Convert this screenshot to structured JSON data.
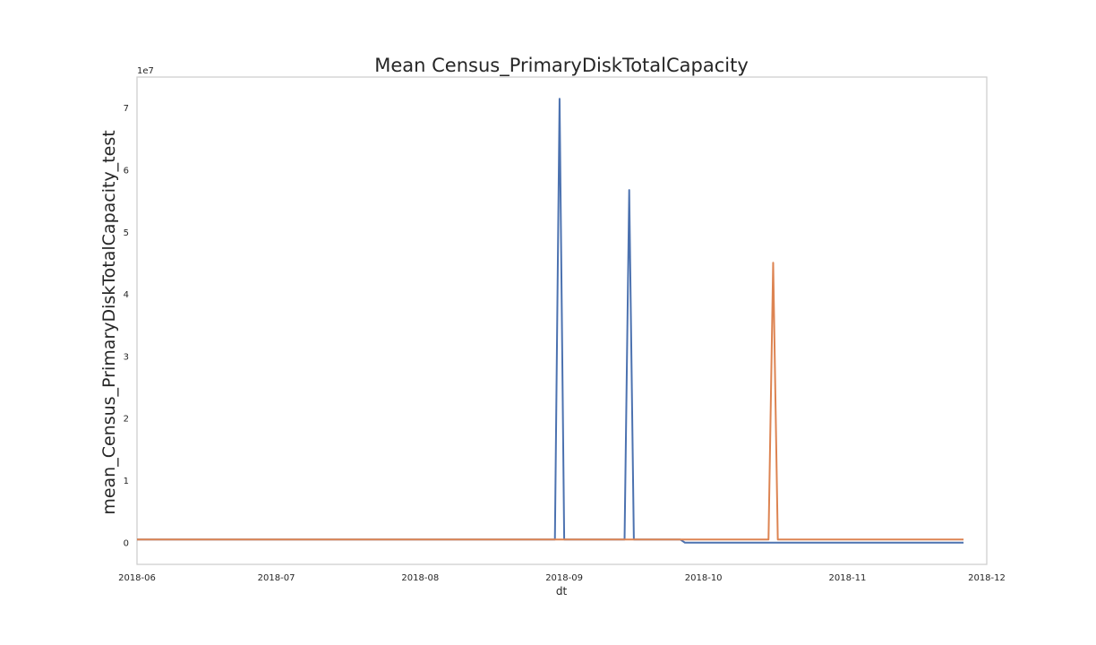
{
  "chart_data": {
    "type": "line",
    "title": "Mean Census_PrimaryDiskTotalCapacity",
    "xlabel": "dt",
    "ylabel": "mean_Census_PrimaryDiskTotalCapacity_test",
    "y_offset_label": "1e7",
    "y_scale_multiplier": 10000000,
    "xlim": [
      "2018-06-01",
      "2018-12-01"
    ],
    "ylim": [
      -3500000,
      75000000
    ],
    "x_ticks": [
      "2018-06",
      "2018-07",
      "2018-08",
      "2018-09",
      "2018-10",
      "2018-11",
      "2018-12"
    ],
    "y_ticks": [
      0,
      10000000,
      20000000,
      30000000,
      40000000,
      50000000,
      60000000,
      70000000
    ],
    "y_tick_labels": [
      "0",
      "1",
      "2",
      "3",
      "4",
      "5",
      "6",
      "7"
    ],
    "grid": false,
    "series": [
      {
        "color": "#4c72b0",
        "points": [
          [
            "2018-06-01",
            500000
          ],
          [
            "2018-06-30",
            500000
          ],
          [
            "2018-07-31",
            500000
          ],
          [
            "2018-08-30",
            500000
          ],
          [
            "2018-08-31",
            71500000
          ],
          [
            "2018-09-01",
            500000
          ],
          [
            "2018-09-14",
            500000
          ],
          [
            "2018-09-15",
            56800000
          ],
          [
            "2018-09-16",
            500000
          ],
          [
            "2018-09-26",
            500000
          ],
          [
            "2018-09-27",
            0
          ],
          [
            "2018-10-31",
            0
          ],
          [
            "2018-11-26",
            0
          ]
        ]
      },
      {
        "color": "#dd8452",
        "points": [
          [
            "2018-06-01",
            500000
          ],
          [
            "2018-07-31",
            500000
          ],
          [
            "2018-08-31",
            500000
          ],
          [
            "2018-09-30",
            500000
          ],
          [
            "2018-10-15",
            500000
          ],
          [
            "2018-10-16",
            45100000
          ],
          [
            "2018-10-17",
            500000
          ],
          [
            "2018-11-26",
            500000
          ]
        ]
      }
    ]
  }
}
